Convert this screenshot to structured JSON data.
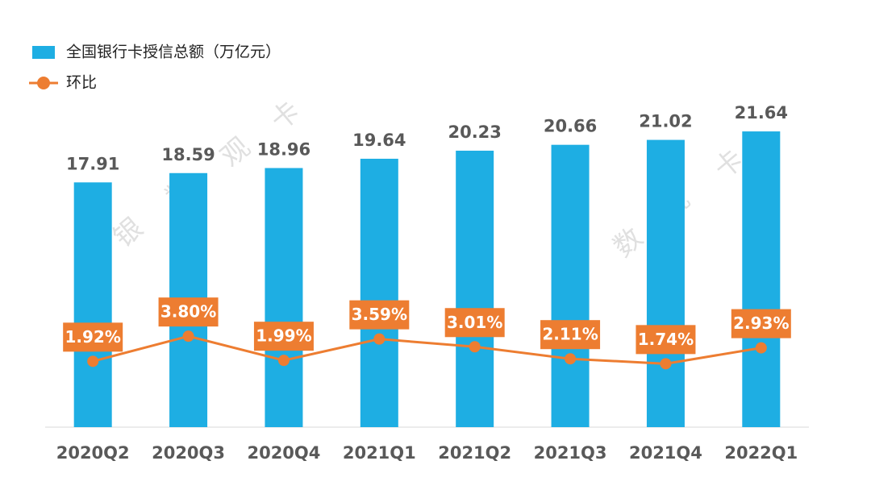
{
  "chart_data": {
    "type": "bar-line",
    "categories": [
      "2020Q2",
      "2020Q3",
      "2020Q4",
      "2021Q1",
      "2021Q2",
      "2021Q3",
      "2021Q4",
      "2022Q1"
    ],
    "series": [
      {
        "name": "全国银行卡授信总额（万亿元）",
        "type": "bar",
        "color": "#1eaee3",
        "values": [
          17.91,
          18.59,
          18.96,
          19.64,
          20.23,
          20.66,
          21.02,
          21.64
        ]
      },
      {
        "name": "环比",
        "type": "line",
        "axis": "y2",
        "color": "#ed7d31",
        "values": [
          1.92,
          3.8,
          1.99,
          3.59,
          3.01,
          2.11,
          1.74,
          2.93
        ],
        "value_labels": [
          "1.92%",
          "3.80%",
          "1.99%",
          "3.59%",
          "3.01%",
          "2.11%",
          "1.74%",
          "2.93%"
        ]
      }
    ],
    "ylim": [
      0,
      23
    ],
    "y2lim": [
      -3,
      20.5
    ],
    "legend": "top-left",
    "watermark": [
      "银",
      "数",
      "观",
      "卡"
    ]
  }
}
